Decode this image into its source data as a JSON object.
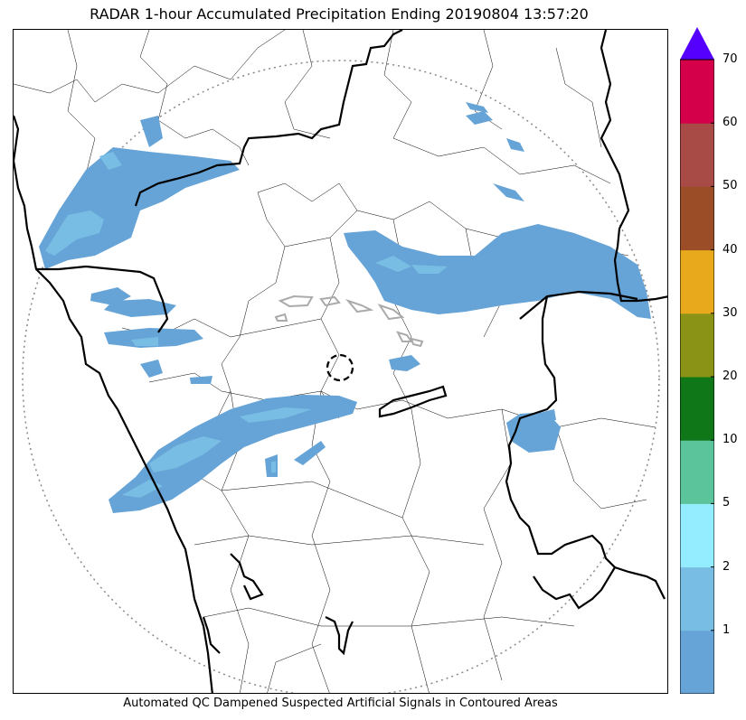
{
  "title": "RADAR 1-hour Accumulated Precipitation Ending 20190804 13:57:20",
  "footnote": "Automated QC Dampened Suspected Artificial Signals in Contoured Areas",
  "colorbar": {
    "extend_color": "#5500ff",
    "colors": [
      "#66a3d6",
      "#78bde3",
      "#94ecff",
      "#5cc49a",
      "#107719",
      "#8b9317",
      "#e8a91c",
      "#9a4d27",
      "#a84a45",
      "#d4004a"
    ],
    "tick_labels": [
      "1",
      "2",
      "5",
      "10",
      "20",
      "30",
      "40",
      "50",
      "60",
      "70"
    ]
  },
  "map": {
    "precip_colors": {
      "light": "#66a3d6",
      "medium": "#78bde3"
    },
    "range_ring_color": "#888888",
    "border_color": "#000000"
  }
}
